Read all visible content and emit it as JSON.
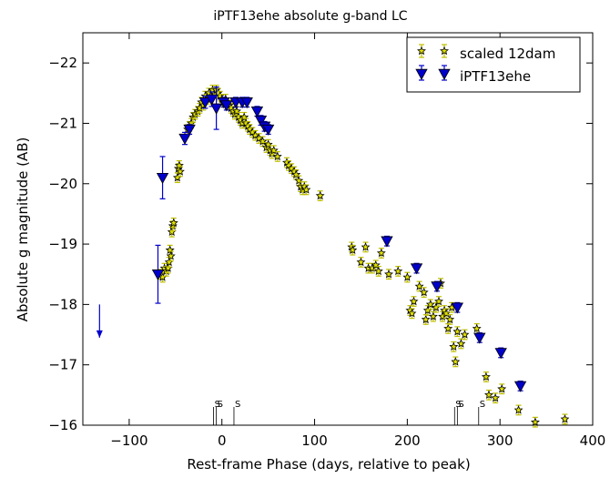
{
  "chart_data": {
    "type": "scatter",
    "title": "iPTF13ehe absolute g-band LC",
    "xlabel": "Rest-frame Phase (days, relative to peak)",
    "ylabel": "Absolute g magnitude (AB)",
    "xlim": [
      -150,
      400
    ],
    "ylim": [
      -16,
      -22.5
    ],
    "y_inverted": true,
    "grid": false,
    "legend_position": "top-right",
    "x_ticks": [
      -100,
      0,
      100,
      200,
      300,
      400
    ],
    "x_tick_labels": [
      "−100",
      "0",
      "100",
      "200",
      "300",
      "400"
    ],
    "y_ticks": [
      -16,
      -17,
      -18,
      -19,
      -20,
      -21,
      -22
    ],
    "y_tick_labels": [
      "−16",
      "−17",
      "−18",
      "−19",
      "−20",
      "−21",
      "−22"
    ],
    "colors": {
      "scaled": "#000000",
      "scaled_err": "#bfbf00",
      "iptf": "#0000cc"
    },
    "series": [
      {
        "name": "scaled 12dam",
        "marker": "star",
        "err": 0.08,
        "points": [
          [
            -66,
            -18.5
          ],
          [
            -64,
            -18.45
          ],
          [
            -62,
            -18.6
          ],
          [
            -60,
            -18.55
          ],
          [
            -58,
            -18.6
          ],
          [
            -57,
            -18.7
          ],
          [
            -56,
            -18.9
          ],
          [
            -55,
            -18.8
          ],
          [
            -54,
            -19.2
          ],
          [
            -53,
            -19.3
          ],
          [
            -52,
            -19.35
          ],
          [
            -48,
            -20.1
          ],
          [
            -47,
            -20.25
          ],
          [
            -46,
            -20.3
          ],
          [
            -45,
            -20.2
          ],
          [
            -37,
            -20.9
          ],
          [
            -35,
            -20.95
          ],
          [
            -33,
            -21.0
          ],
          [
            -31,
            -21.1
          ],
          [
            -29,
            -21.15
          ],
          [
            -26,
            -21.2
          ],
          [
            -24,
            -21.25
          ],
          [
            -22,
            -21.35
          ],
          [
            -20,
            -21.3
          ],
          [
            -18,
            -21.45
          ],
          [
            -16,
            -21.4
          ],
          [
            -14,
            -21.5
          ],
          [
            -12,
            -21.45
          ],
          [
            -10,
            -21.55
          ],
          [
            -8,
            -21.5
          ],
          [
            -6,
            -21.55
          ],
          [
            -4,
            -21.5
          ],
          [
            -2,
            -21.45
          ],
          [
            0,
            -21.4
          ],
          [
            2,
            -21.35
          ],
          [
            4,
            -21.4
          ],
          [
            6,
            -21.3
          ],
          [
            8,
            -21.3
          ],
          [
            10,
            -21.25
          ],
          [
            12,
            -21.2
          ],
          [
            14,
            -21.15
          ],
          [
            16,
            -21.2
          ],
          [
            18,
            -21.1
          ],
          [
            20,
            -21.05
          ],
          [
            22,
            -21.0
          ],
          [
            24,
            -21.1
          ],
          [
            26,
            -21.0
          ],
          [
            28,
            -20.95
          ],
          [
            30,
            -20.9
          ],
          [
            33,
            -20.85
          ],
          [
            36,
            -20.8
          ],
          [
            40,
            -20.75
          ],
          [
            44,
            -20.7
          ],
          [
            48,
            -20.6
          ],
          [
            50,
            -20.65
          ],
          [
            52,
            -20.55
          ],
          [
            54,
            -20.5
          ],
          [
            56,
            -20.55
          ],
          [
            60,
            -20.45
          ],
          [
            70,
            -20.35
          ],
          [
            72,
            -20.3
          ],
          [
            75,
            -20.25
          ],
          [
            78,
            -20.2
          ],
          [
            80,
            -20.15
          ],
          [
            83,
            -20.05
          ],
          [
            85,
            -19.95
          ],
          [
            87,
            -19.9
          ],
          [
            89,
            -19.95
          ],
          [
            91,
            -19.9
          ],
          [
            106,
            -19.8
          ],
          [
            140,
            -18.95
          ],
          [
            141,
            -18.9
          ],
          [
            150,
            -18.7
          ],
          [
            155,
            -18.95
          ],
          [
            158,
            -18.6
          ],
          [
            162,
            -18.6
          ],
          [
            166,
            -18.65
          ],
          [
            169,
            -18.55
          ],
          [
            172,
            -18.85
          ],
          [
            180,
            -18.5
          ],
          [
            190,
            -18.55
          ],
          [
            200,
            -18.45
          ],
          [
            203,
            -17.9
          ],
          [
            205,
            -17.85
          ],
          [
            207,
            -18.05
          ],
          [
            213,
            -18.3
          ],
          [
            218,
            -18.2
          ],
          [
            220,
            -17.75
          ],
          [
            222,
            -17.9
          ],
          [
            225,
            -18.0
          ],
          [
            228,
            -17.8
          ],
          [
            231,
            -17.95
          ],
          [
            234,
            -18.05
          ],
          [
            236,
            -18.35
          ],
          [
            238,
            -17.8
          ],
          [
            240,
            -17.9
          ],
          [
            242,
            -17.85
          ],
          [
            244,
            -17.6
          ],
          [
            246,
            -17.75
          ],
          [
            248,
            -17.95
          ],
          [
            250,
            -17.3
          ],
          [
            252,
            -17.05
          ],
          [
            254,
            -17.55
          ],
          [
            258,
            -17.35
          ],
          [
            262,
            -17.5
          ],
          [
            275,
            -17.6
          ],
          [
            285,
            -16.8
          ],
          [
            288,
            -16.5
          ],
          [
            295,
            -16.45
          ],
          [
            302,
            -16.6
          ],
          [
            320,
            -16.25
          ],
          [
            338,
            -16.05
          ],
          [
            370,
            -16.1
          ]
        ]
      },
      {
        "name": "iPTF13ehe",
        "marker": "triangle-down",
        "points": [
          [
            -69,
            -18.5,
            0.48
          ],
          [
            -64,
            -20.1,
            0.35
          ],
          [
            -40,
            -20.75,
            0.1
          ],
          [
            -35,
            -20.9,
            0.08
          ],
          [
            -18,
            -21.35,
            0.1
          ],
          [
            -11,
            -21.4,
            0.12
          ],
          [
            -6,
            -21.25,
            0.35
          ],
          [
            2,
            -21.35,
            0.08
          ],
          [
            5,
            -21.3,
            0.08
          ],
          [
            15,
            -21.35,
            0.08
          ],
          [
            22,
            -21.35,
            0.08
          ],
          [
            27,
            -21.35,
            0.08
          ],
          [
            38,
            -21.2,
            0.08
          ],
          [
            42,
            -21.05,
            0.08
          ],
          [
            46,
            -20.95,
            0.08
          ],
          [
            50,
            -20.9,
            0.08
          ],
          [
            178,
            -19.05,
            0.08
          ],
          [
            210,
            -18.6,
            0.08
          ],
          [
            232,
            -18.3,
            0.08
          ],
          [
            254,
            -17.95,
            0.08
          ],
          [
            278,
            -17.45,
            0.08
          ],
          [
            301,
            -17.2,
            0.08
          ],
          [
            322,
            -16.65,
            0.08
          ]
        ]
      }
    ],
    "upper_limit": {
      "x": -132,
      "y_from": -18.0,
      "y_to": -17.45
    },
    "spectra_epochs": {
      "label": "S",
      "x": [
        -9,
        -6,
        13,
        251,
        254,
        277
      ]
    }
  }
}
